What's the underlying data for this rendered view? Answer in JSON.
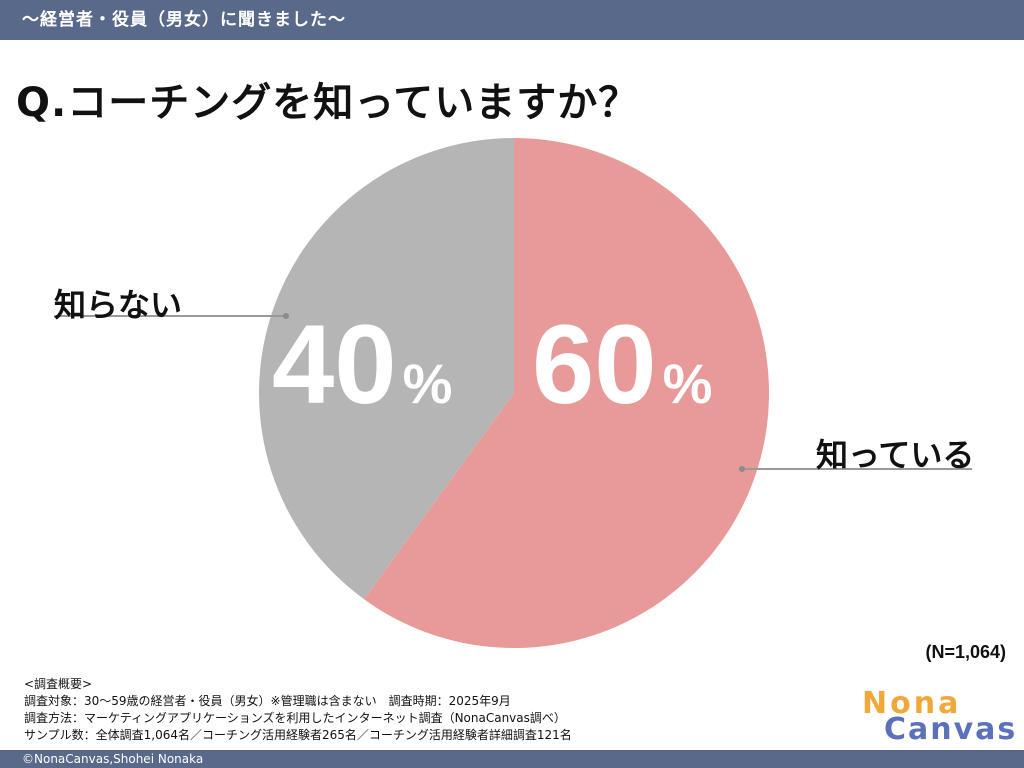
{
  "header": {
    "banner_text": "〜経営者・役員（男女）に聞きました〜"
  },
  "question": "Q.コーチングを知っていますか？",
  "chart_data": {
    "type": "pie",
    "title": "Q.コーチングを知っていますか？",
    "slices": [
      {
        "label": "知っている",
        "value": 60,
        "display": "60",
        "color": "#e89a99"
      },
      {
        "label": "知らない",
        "value": 40,
        "display": "40",
        "color": "#b5b5b5"
      }
    ],
    "percent_symbol": "%",
    "sample_size": "(N=1,064)"
  },
  "survey": {
    "heading": "<調査概要>",
    "lines": [
      "調査対象：30〜59歳の経営者・役員（男女）※管理職は含まない　調査時期：2025年9月",
      "調査方法：マーケティングアプリケーションズを利用したインターネット調査（NonaCanvas調べ）",
      "サンプル数：全体調査1,064名／コーチング活用経験者265名／コーチング活用経験者詳細調査121名"
    ]
  },
  "logo": {
    "line1": "Nona",
    "line2": "Canvas"
  },
  "footer": {
    "copyright": "©NonaCanvas,Shohei Nonaka"
  },
  "colors": {
    "banner": "#58698a",
    "logo_orange": "#f0a838",
    "logo_blue": "#5b72b8"
  }
}
